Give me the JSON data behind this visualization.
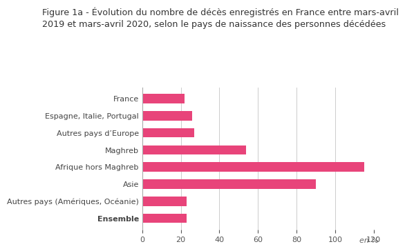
{
  "title_line1": "Figure 1a - Évolution du nombre de décès enregistrés en France entre mars-avril",
  "title_line2": "2019 et mars-avril 2020, selon le pays de naissance des personnes décédées",
  "categories": [
    "France",
    "Espagne, Italie, Portugal",
    "Autres pays d’Europe",
    "Maghreb",
    "Afrique hors Maghreb",
    "Asie",
    "Autres pays (Amériques, Océanie)",
    "Ensemble"
  ],
  "bold_categories": [
    "Ensemble"
  ],
  "values": [
    22,
    26,
    27,
    54,
    115,
    90,
    23,
    23
  ],
  "bar_color": "#e8447a",
  "xlim": [
    0,
    120
  ],
  "xticks": [
    0,
    20,
    40,
    60,
    80,
    100,
    120
  ],
  "xlabel": "en %",
  "background_color": "#ffffff",
  "title_fontsize": 9.2,
  "tick_fontsize": 8.0,
  "label_fontsize": 8.0
}
